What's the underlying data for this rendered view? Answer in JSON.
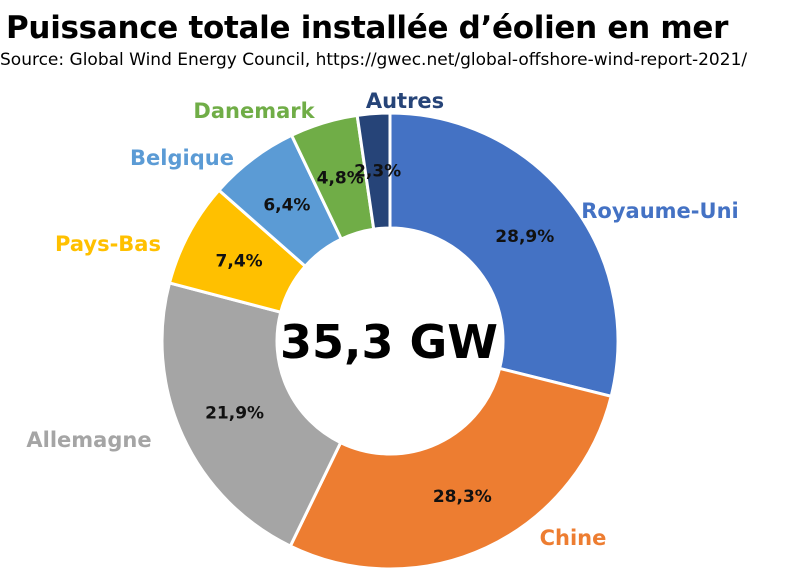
{
  "chart_data": {
    "type": "pie",
    "variant": "donut",
    "title": "Puissance totale installée d’éolien en mer",
    "subtitle": "Source: Global Wind Energy Council, https://gwec.net/global-offshore-wind-report-2021/",
    "center_label": "35,3 GW",
    "slices": [
      {
        "label": "Royaume-Uni",
        "value": 28.9,
        "value_label": "28,9%",
        "color": "#4472C4"
      },
      {
        "label": "Chine",
        "value": 28.3,
        "value_label": "28,3%",
        "color": "#ED7D31"
      },
      {
        "label": "Allemagne",
        "value": 21.9,
        "value_label": "21,9%",
        "color": "#A5A5A5"
      },
      {
        "label": "Pays-Bas",
        "value": 7.4,
        "value_label": "7,4%",
        "color": "#FFC000"
      },
      {
        "label": "Belgique",
        "value": 6.4,
        "value_label": "6,4%",
        "color": "#5B9BD5"
      },
      {
        "label": "Danemark",
        "value": 4.8,
        "value_label": "4,8%",
        "color": "#70AD47"
      },
      {
        "label": "Autres",
        "value": 2.3,
        "value_label": "2,3%",
        "color": "#264478"
      }
    ]
  }
}
